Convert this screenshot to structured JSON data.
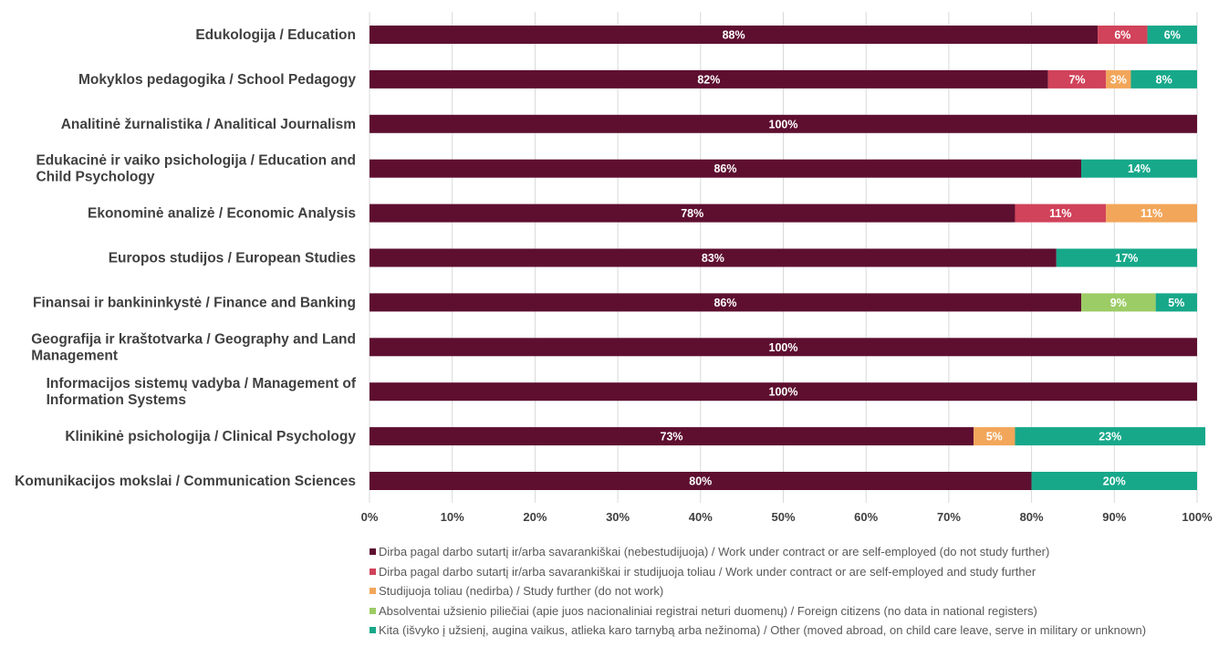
{
  "chart_data": {
    "type": "bar",
    "orientation": "horizontal",
    "stacked": "percent",
    "categories": [
      "Edukologija / Education",
      "Mokyklos pedagogika / School Pedagogy",
      "Analitinė žurnalistika / Analitical Journalism",
      "Edukacinė ir vaiko psichologija / Education and Child Psychology",
      "Ekonominė analizė / Economic Analysis",
      "Europos studijos / European Studies",
      "Finansai ir bankininkystė / Finance and Banking ",
      "Geografija ir kraštotvarka / Geography and Land Management",
      "Informacijos sistemų vadyba / Management of Information Systems",
      "Klinikinė psichologija / Clinical Psychology",
      "Komunikacijos mokslai / Communication Sciences"
    ],
    "series": [
      {
        "name": "Dirba pagal darbo sutartį ir/arba savarankiškai (nebestudijuoja) / Work under contract or are self-employed (do not study further)",
        "color": "#5e0f30",
        "values": [
          88,
          82,
          100,
          86,
          78,
          83,
          86,
          100,
          100,
          73,
          80
        ],
        "labels": [
          "88%",
          "82%",
          "100%",
          "86%",
          "78%",
          "83%",
          "86%",
          "100%",
          "100%",
          "73%",
          "80%"
        ]
      },
      {
        "name": "Dirba pagal darbo sutartį ir/arba savarankiškai  ir studijuoja toliau / Work under contract or are self-employed and study further",
        "color": "#d0435a",
        "values": [
          6,
          7,
          0,
          0,
          11,
          0,
          0,
          0,
          0,
          0,
          0
        ],
        "labels": [
          "6%",
          "7%",
          "",
          "",
          "11%",
          "",
          "",
          "",
          "",
          "",
          ""
        ]
      },
      {
        "name": "Studijuoja toliau (nedirba) / Study further (do not work)",
        "color": "#f2a65a",
        "values": [
          0,
          3,
          0,
          0,
          11,
          0,
          0,
          0,
          0,
          5,
          0
        ],
        "labels": [
          "",
          "3%",
          "",
          "",
          "11%",
          "",
          "",
          "",
          "",
          "5%",
          ""
        ]
      },
      {
        "name": "Absolventai užsienio piliečiai (apie juos nacionaliniai registrai neturi duomenų) / Foreign citizens (no data in national registers)",
        "color": "#9ccc65",
        "values": [
          0,
          0,
          0,
          0,
          0,
          0,
          9,
          0,
          0,
          0,
          0
        ],
        "labels": [
          "",
          "",
          "",
          "",
          "",
          "",
          "9%",
          "",
          "",
          "",
          ""
        ]
      },
      {
        "name": "Kita (išvyko į užsienį, augina vaikus, atlieka karo tarnybą arba nežinoma) / Other (moved abroad, on child care leave, serve in military or unknown)",
        "color": "#17a88a",
        "values": [
          6,
          8,
          0,
          14,
          0,
          17,
          5,
          0,
          0,
          23,
          20
        ],
        "labels": [
          "6%",
          "8%",
          "",
          "14%",
          "",
          "17%",
          "5%",
          "",
          "",
          "23%",
          "20%"
        ]
      }
    ],
    "xticks": [
      "0%",
      "10%",
      "20%",
      "30%",
      "40%",
      "50%",
      "60%",
      "70%",
      "80%",
      "90%",
      "100%"
    ],
    "xlim": [
      0,
      100
    ],
    "grid": true,
    "legend": "bottom"
  }
}
